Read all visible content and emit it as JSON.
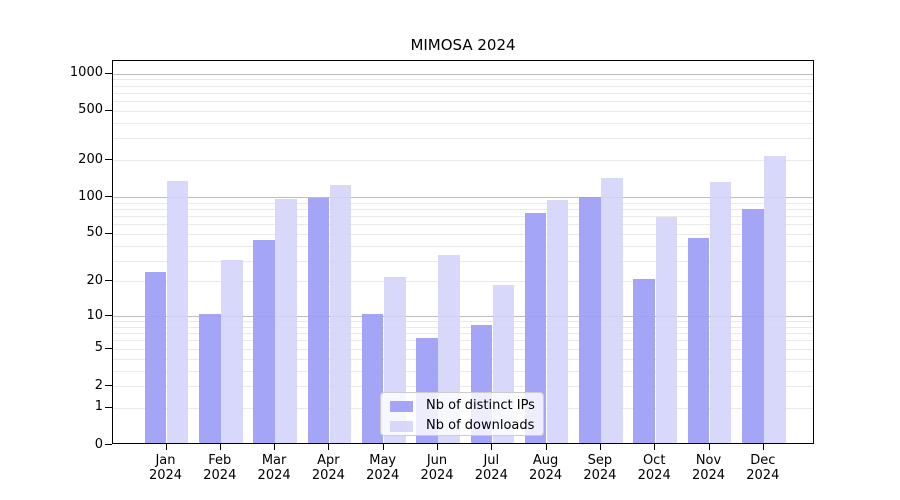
{
  "chart_data": {
    "type": "bar",
    "title": "MIMOSA 2024",
    "categories": [
      "Jan",
      "Feb",
      "Mar",
      "Apr",
      "May",
      "Jun",
      "Jul",
      "Aug",
      "Sep",
      "Oct",
      "Nov",
      "Dec"
    ],
    "category_year": "2024",
    "series": [
      {
        "name": "Nb of distinct IPs",
        "color": "rgba(157,157,246,0.92)",
        "values": [
          23,
          10,
          43,
          95,
          10,
          6,
          8,
          72,
          96,
          20,
          44,
          77
        ]
      },
      {
        "name": "Nb of downloads",
        "color": "rgba(211,211,249,0.88)",
        "values": [
          130,
          29,
          92,
          121,
          21,
          32,
          18,
          91,
          138,
          66,
          127,
          206
        ]
      }
    ],
    "xlabel": "",
    "ylabel": "",
    "y_ticks": [
      1000,
      500,
      200,
      100,
      50,
      20,
      10,
      5,
      2,
      1,
      0
    ],
    "y_scale": "log10(1+v)",
    "ylim": [
      0,
      1270
    ],
    "grid": {
      "major_values": [
        10,
        100,
        1000
      ],
      "minor_values": [
        1,
        2,
        3,
        4,
        5,
        6,
        7,
        8,
        9,
        20,
        30,
        40,
        50,
        60,
        70,
        80,
        90,
        200,
        300,
        400,
        500,
        600,
        700,
        800,
        900
      ],
      "major_color": "#bdbdbd",
      "minor_color": "#e9e9e9"
    },
    "legend_position": "lower-center"
  }
}
